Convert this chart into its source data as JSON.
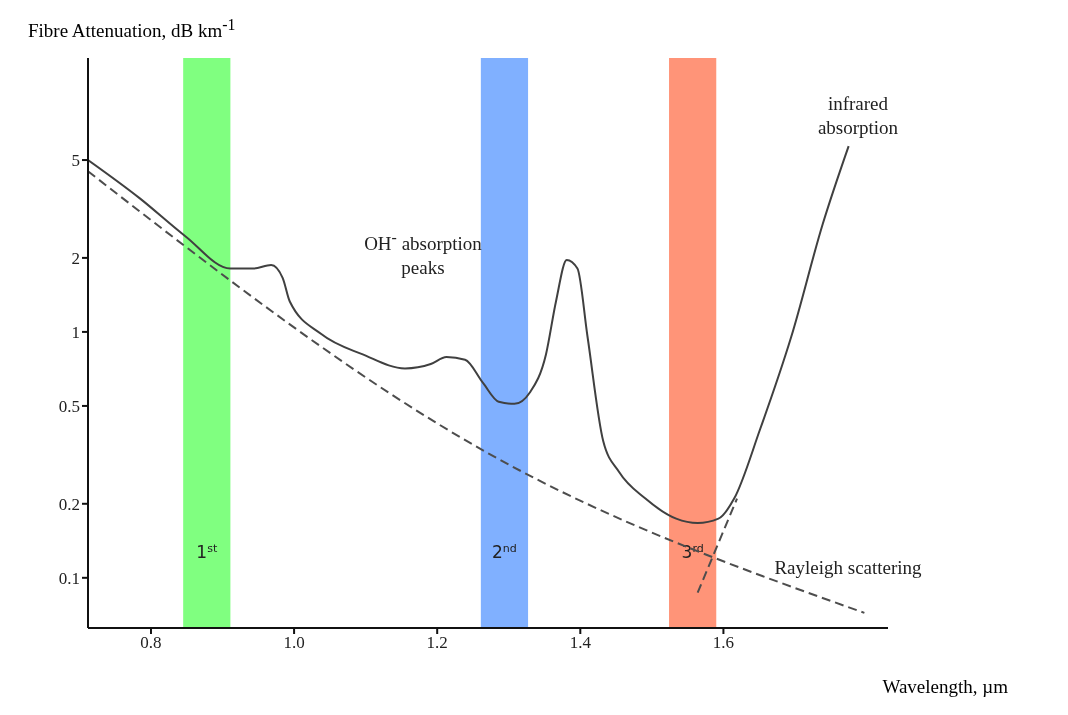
{
  "chart_data": {
    "type": "line",
    "xlabel": "Wavelength, µm",
    "ylabel": "Fibre Attenuation, dB km$^{-1}$",
    "log": "y",
    "xlim": [
      0.712,
      1.83
    ],
    "ylim": [
      0.0625,
      13
    ],
    "xticks": [
      0.8,
      {
        "value": 1,
        "label": "1.0"
      },
      1.2,
      1.4,
      1.6
    ],
    "yticks": [
      0.1,
      0.2,
      0.5,
      1,
      2,
      5
    ],
    "series": [
      {
        "color": "#404040",
        "line_style": "solid",
        "x": [
          0.712,
          0.784,
          0.848,
          0.911,
          0.943,
          0.968,
          0.984,
          0.994,
          1.038,
          1.096,
          1.155,
          1.191,
          1.213,
          1.239,
          1.264,
          1.286,
          1.308,
          1.33,
          1.352,
          1.366,
          1.381,
          1.396,
          1.41,
          1.432,
          1.454,
          1.491,
          1.534,
          1.564,
          1.593,
          1.615,
          1.651,
          1.695,
          1.739,
          1.775
        ],
        "values": [
          5,
          3.5,
          2.45,
          1.81,
          1.81,
          1.87,
          1.66,
          1.33,
          0.98,
          0.81,
          0.71,
          0.74,
          0.79,
          0.77,
          0.62,
          0.52,
          0.51,
          0.57,
          0.81,
          1.33,
          1.96,
          1.81,
          0.96,
          0.36,
          0.27,
          0.21,
          0.174,
          0.167,
          0.174,
          0.21,
          0.4,
          0.96,
          2.76,
          5.7
        ]
      },
      {
        "color": "#4d4d4d",
        "line_style": "dashed",
        "x": [
          0.712,
          1.272,
          1.797
        ],
        "values": [
          4.5,
          0.32,
          0.072
        ]
      },
      {
        "color": "#4d4d4d",
        "line_style": "dashed",
        "x": [
          1.564,
          1.619
        ],
        "values": [
          0.087,
          0.21
        ]
      }
    ],
    "bands": [
      {
        "axis": "x",
        "from": 0.845,
        "to": 0.911,
        "label": "1$^{st}$",
        "color": "#80ff80"
      },
      {
        "axis": "x",
        "from": 1.261,
        "to": 1.327,
        "label": "2$^{nd}$",
        "color": "#80b0ff"
      },
      {
        "axis": "x",
        "from": 1.524,
        "to": 1.59,
        "label": "3$^{rd}$",
        "color": "#ff9478"
      }
    ],
    "annotations": [
      "OH$^{-}$ absorption peaks",
      "infrared absorption",
      "Rayleigh scattering"
    ]
  }
}
